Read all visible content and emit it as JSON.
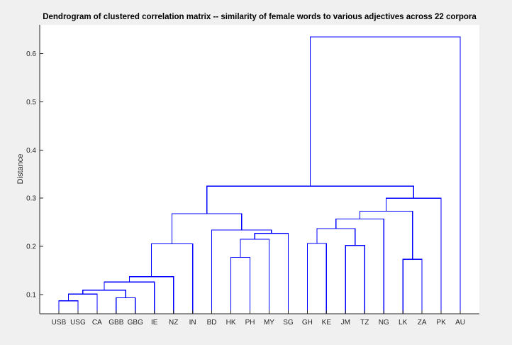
{
  "chart_data": {
    "type": "dendrogram",
    "title": "Dendrogram of clustered correlation matrix -- similarity of female words to various adjectives across 22 corpora",
    "xlabel": "",
    "ylabel": "Distance",
    "ylim": [
      0.06,
      0.66
    ],
    "yticks": [
      0.1,
      0.2,
      0.3,
      0.4,
      0.5,
      0.6
    ],
    "ytick_labels": [
      "0.1",
      "0.2",
      "0.3",
      "0.4",
      "0.5",
      "0.6"
    ],
    "leaves": [
      "USB",
      "USG",
      "CA",
      "GBB",
      "GBG",
      "IE",
      "NZ",
      "IN",
      "BD",
      "HK",
      "PH",
      "MY",
      "SG",
      "GH",
      "KE",
      "JM",
      "TZ",
      "NG",
      "LK",
      "ZA",
      "PK",
      "AU"
    ],
    "link_color": "#0000ff",
    "merges": [
      {
        "a": "USB",
        "b": "USG",
        "height": 0.087
      },
      {
        "a": "GBB",
        "b": "GBG",
        "height": 0.093
      },
      {
        "a": "m0",
        "b": "CA",
        "height": 0.101
      },
      {
        "a": "m2",
        "b": "m1",
        "height": 0.109
      },
      {
        "a": "m3",
        "b": "IE",
        "height": 0.126
      },
      {
        "a": "m4",
        "b": "NZ",
        "height": 0.137
      },
      {
        "a": "m5",
        "b": "IN",
        "height": 0.205
      },
      {
        "a": "HK",
        "b": "PH",
        "height": 0.177
      },
      {
        "a": "m7",
        "b": "MY",
        "height": 0.215
      },
      {
        "a": "m8",
        "b": "SG",
        "height": 0.227
      },
      {
        "a": "BD",
        "b": "m9",
        "height": 0.234
      },
      {
        "a": "m6",
        "b": "m10",
        "height": 0.268
      },
      {
        "a": "JM",
        "b": "TZ",
        "height": 0.202
      },
      {
        "a": "GH",
        "b": "KE",
        "height": 0.206
      },
      {
        "a": "m13",
        "b": "m12",
        "height": 0.237
      },
      {
        "a": "m14",
        "b": "NG",
        "height": 0.257
      },
      {
        "a": "LK",
        "b": "ZA",
        "height": 0.173
      },
      {
        "a": "m15",
        "b": "m16",
        "height": 0.273
      },
      {
        "a": "m17",
        "b": "PK",
        "height": 0.3
      },
      {
        "a": "m11",
        "b": "m18",
        "height": 0.325
      },
      {
        "a": "m19",
        "b": "AU",
        "height": 0.635
      }
    ]
  }
}
